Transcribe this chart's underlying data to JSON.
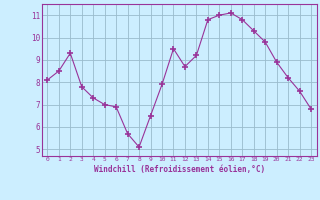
{
  "x": [
    0,
    1,
    2,
    3,
    4,
    5,
    6,
    7,
    8,
    9,
    10,
    11,
    12,
    13,
    14,
    15,
    16,
    17,
    18,
    19,
    20,
    21,
    22,
    23
  ],
  "y": [
    8.1,
    8.5,
    9.3,
    7.8,
    7.3,
    7.0,
    6.9,
    5.7,
    5.1,
    6.5,
    7.9,
    9.5,
    8.7,
    9.2,
    10.8,
    11.0,
    11.1,
    10.8,
    10.3,
    9.8,
    8.9,
    8.2,
    7.6,
    6.8
  ],
  "line_color": "#993399",
  "marker_color": "#993399",
  "bg_color": "#cceeff",
  "grid_color": "#99bbcc",
  "tick_color": "#993399",
  "xlabel": "Windchill (Refroidissement éolien,°C)",
  "ylim": [
    4.7,
    11.5
  ],
  "xlim": [
    -0.5,
    23.5
  ],
  "yticks": [
    5,
    6,
    7,
    8,
    9,
    10,
    11
  ],
  "xticks": [
    0,
    1,
    2,
    3,
    4,
    5,
    6,
    7,
    8,
    9,
    10,
    11,
    12,
    13,
    14,
    15,
    16,
    17,
    18,
    19,
    20,
    21,
    22,
    23
  ]
}
